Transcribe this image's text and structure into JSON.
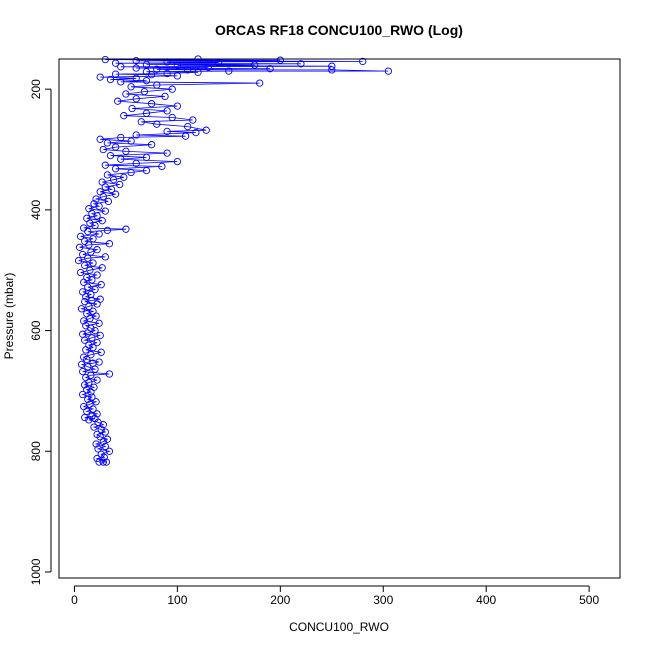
{
  "chart_data": {
    "type": "scatter",
    "title": "ORCAS RF18 CONCU100_RWO (Log)",
    "xlabel": "CONCU100_RWO",
    "ylabel": "Pressure (mbar)",
    "xlim": [
      -15,
      530
    ],
    "ylim": [
      1010,
      150
    ],
    "y_reversed": true,
    "grid": false,
    "x_ticks": [
      0,
      100,
      200,
      300,
      400,
      500
    ],
    "y_ticks": [
      200,
      400,
      600,
      800,
      1000
    ],
    "series": [
      {
        "color": "#0000ff",
        "marker": "open-circle",
        "connected": true,
        "points": [
          [
            28,
            818
          ],
          [
            24,
            818
          ],
          [
            31,
            818
          ],
          [
            22,
            812
          ],
          [
            29,
            810
          ],
          [
            26,
            805
          ],
          [
            34,
            800
          ],
          [
            23,
            796
          ],
          [
            30,
            792
          ],
          [
            21,
            788
          ],
          [
            28,
            784
          ],
          [
            32,
            780
          ],
          [
            25,
            776
          ],
          [
            22,
            772
          ],
          [
            30,
            768
          ],
          [
            26,
            764
          ],
          [
            19,
            760
          ],
          [
            28,
            756
          ],
          [
            23,
            752
          ],
          [
            14,
            748
          ],
          [
            20,
            746
          ],
          [
            10,
            744
          ],
          [
            17,
            742
          ],
          [
            22,
            738
          ],
          [
            12,
            734
          ],
          [
            18,
            730
          ],
          [
            9,
            726
          ],
          [
            15,
            722
          ],
          [
            21,
            718
          ],
          [
            13,
            714
          ],
          [
            17,
            710
          ],
          [
            8,
            706
          ],
          [
            16,
            702
          ],
          [
            12,
            698
          ],
          [
            19,
            694
          ],
          [
            10,
            690
          ],
          [
            14,
            686
          ],
          [
            22,
            682
          ],
          [
            11,
            678
          ],
          [
            16,
            674
          ],
          [
            34,
            672
          ],
          [
            8,
            668
          ],
          [
            20,
            664
          ],
          [
            13,
            660
          ],
          [
            7,
            656
          ],
          [
            18,
            654
          ],
          [
            24,
            652
          ],
          [
            12,
            648
          ],
          [
            9,
            644
          ],
          [
            16,
            640
          ],
          [
            26,
            636
          ],
          [
            11,
            632
          ],
          [
            18,
            628
          ],
          [
            14,
            624
          ],
          [
            22,
            620
          ],
          [
            10,
            616
          ],
          [
            17,
            612
          ],
          [
            25,
            608
          ],
          [
            8,
            606
          ],
          [
            13,
            604
          ],
          [
            20,
            600
          ],
          [
            16,
            596
          ],
          [
            11,
            592
          ],
          [
            24,
            588
          ],
          [
            9,
            584
          ],
          [
            15,
            580
          ],
          [
            21,
            576
          ],
          [
            12,
            572
          ],
          [
            18,
            568
          ],
          [
            7,
            564
          ],
          [
            14,
            560
          ],
          [
            22,
            556
          ],
          [
            10,
            552
          ],
          [
            17,
            550
          ],
          [
            25,
            548
          ],
          [
            11,
            544
          ],
          [
            16,
            540
          ],
          [
            8,
            536
          ],
          [
            20,
            532
          ],
          [
            13,
            528
          ],
          [
            26,
            524
          ],
          [
            9,
            520
          ],
          [
            17,
            516
          ],
          [
            12,
            512
          ],
          [
            22,
            508
          ],
          [
            6,
            504
          ],
          [
            15,
            500
          ],
          [
            27,
            496
          ],
          [
            10,
            492
          ],
          [
            18,
            488
          ],
          [
            4,
            484
          ],
          [
            13,
            480
          ],
          [
            30,
            478
          ],
          [
            8,
            474
          ],
          [
            16,
            470
          ],
          [
            22,
            466
          ],
          [
            5,
            462
          ],
          [
            14,
            458
          ],
          [
            34,
            456
          ],
          [
            10,
            452
          ],
          [
            18,
            448
          ],
          [
            6,
            444
          ],
          [
            24,
            440
          ],
          [
            13,
            436
          ],
          [
            32,
            434
          ],
          [
            50,
            432
          ],
          [
            9,
            430
          ],
          [
            20,
            426
          ],
          [
            15,
            422
          ],
          [
            27,
            418
          ],
          [
            12,
            414
          ],
          [
            22,
            410
          ],
          [
            17,
            406
          ],
          [
            30,
            402
          ],
          [
            14,
            398
          ],
          [
            24,
            394
          ],
          [
            19,
            390
          ],
          [
            33,
            386
          ],
          [
            21,
            382
          ],
          [
            28,
            378
          ],
          [
            40,
            374
          ],
          [
            25,
            370
          ],
          [
            36,
            366
          ],
          [
            30,
            362
          ],
          [
            44,
            358
          ],
          [
            27,
            354
          ],
          [
            38,
            350
          ],
          [
            48,
            346
          ],
          [
            32,
            342
          ],
          [
            55,
            338
          ],
          [
            70,
            335
          ],
          [
            40,
            332
          ],
          [
            85,
            328
          ],
          [
            30,
            326
          ],
          [
            60,
            323
          ],
          [
            100,
            320
          ],
          [
            45,
            316
          ],
          [
            70,
            313
          ],
          [
            35,
            310
          ],
          [
            90,
            306
          ],
          [
            50,
            303
          ],
          [
            28,
            300
          ],
          [
            40,
            296
          ],
          [
            75,
            292
          ],
          [
            32,
            289
          ],
          [
            55,
            286
          ],
          [
            25,
            283
          ],
          [
            45,
            280
          ],
          [
            108,
            278
          ],
          [
            60,
            276
          ],
          [
            118,
            272
          ],
          [
            90,
            270
          ],
          [
            128,
            268
          ],
          [
            110,
            262
          ],
          [
            80,
            258
          ],
          [
            65,
            254
          ],
          [
            115,
            251
          ],
          [
            95,
            247
          ],
          [
            48,
            244
          ],
          [
            70,
            240
          ],
          [
            90,
            236
          ],
          [
            56,
            232
          ],
          [
            100,
            228
          ],
          [
            75,
            224
          ],
          [
            42,
            220
          ],
          [
            60,
            216
          ],
          [
            88,
            212
          ],
          [
            50,
            208
          ],
          [
            68,
            204
          ],
          [
            95,
            200
          ],
          [
            55,
            196
          ],
          [
            80,
            193
          ],
          [
            180,
            190
          ],
          [
            45,
            188
          ],
          [
            70,
            186
          ],
          [
            35,
            184
          ],
          [
            60,
            182
          ],
          [
            25,
            180
          ],
          [
            100,
            178
          ],
          [
            75,
            176
          ],
          [
            40,
            175
          ],
          [
            90,
            174
          ],
          [
            120,
            172
          ],
          [
            70,
            171
          ],
          [
            150,
            170
          ],
          [
            305,
            170
          ],
          [
            250,
            168
          ],
          [
            110,
            168
          ],
          [
            80,
            167
          ],
          [
            190,
            166
          ],
          [
            60,
            165
          ],
          [
            130,
            164
          ],
          [
            45,
            163
          ],
          [
            250,
            162
          ],
          [
            100,
            161
          ],
          [
            175,
            160
          ],
          [
            70,
            159
          ],
          [
            220,
            158
          ],
          [
            40,
            157
          ],
          [
            140,
            156
          ],
          [
            90,
            155
          ],
          [
            280,
            154
          ],
          [
            60,
            153
          ],
          [
            200,
            152
          ],
          [
            30,
            151
          ],
          [
            120,
            150
          ]
        ]
      }
    ]
  }
}
